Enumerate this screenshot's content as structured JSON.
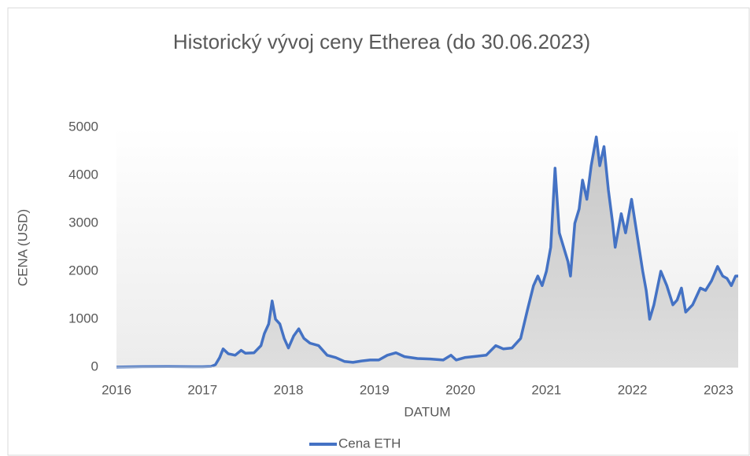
{
  "chart_data": {
    "type": "area-line",
    "title": "Historický vývoj ceny Etherea (do 30.06.2023)",
    "x_label": "DATUM",
    "y_label": "CENA (USD)",
    "series": [
      {
        "name": "Cena ETH",
        "color": "#4472c4",
        "x": [
          2016.0,
          2016.3,
          2016.6,
          2016.9,
          2017.0,
          2017.1,
          2017.15,
          2017.2,
          2017.24,
          2017.3,
          2017.38,
          2017.45,
          2017.5,
          2017.6,
          2017.68,
          2017.72,
          2017.77,
          2017.81,
          2017.85,
          2017.9,
          2017.95,
          2018.0,
          2018.06,
          2018.12,
          2018.18,
          2018.25,
          2018.35,
          2018.45,
          2018.55,
          2018.65,
          2018.75,
          2018.85,
          2018.95,
          2019.05,
          2019.15,
          2019.25,
          2019.35,
          2019.5,
          2019.65,
          2019.8,
          2019.89,
          2019.95,
          2020.05,
          2020.2,
          2020.3,
          2020.41,
          2020.5,
          2020.6,
          2020.7,
          2020.78,
          2020.85,
          2020.9,
          2020.95,
          2021.0,
          2021.05,
          2021.1,
          2021.15,
          2021.2,
          2021.25,
          2021.28,
          2021.33,
          2021.38,
          2021.42,
          2021.47,
          2021.52,
          2021.58,
          2021.62,
          2021.67,
          2021.72,
          2021.77,
          2021.8,
          2021.87,
          2021.92,
          2021.99,
          2022.05,
          2022.12,
          2022.16,
          2022.2,
          2022.25,
          2022.33,
          2022.4,
          2022.47,
          2022.52,
          2022.57,
          2022.62,
          2022.7,
          2022.79,
          2022.85,
          2022.92,
          2022.99,
          2023.05,
          2023.1,
          2023.15,
          2023.2,
          2023.23
        ],
        "values": [
          1,
          10,
          12,
          8,
          9,
          15,
          50,
          200,
          380,
          280,
          250,
          350,
          290,
          300,
          450,
          700,
          900,
          1380,
          1000,
          900,
          600,
          400,
          650,
          800,
          600,
          500,
          450,
          250,
          200,
          120,
          100,
          130,
          150,
          150,
          250,
          300,
          220,
          180,
          170,
          150,
          250,
          150,
          200,
          230,
          250,
          450,
          380,
          400,
          600,
          1200,
          1700,
          1900,
          1700,
          2000,
          2500,
          4150,
          2800,
          2500,
          2200,
          1900,
          3000,
          3300,
          3900,
          3500,
          4200,
          4800,
          4200,
          4600,
          3700,
          3000,
          2500,
          3200,
          2800,
          3500,
          2800,
          2000,
          1600,
          1000,
          1300,
          2000,
          1700,
          1300,
          1400,
          1650,
          1150,
          1300,
          1650,
          1600,
          1800,
          2100,
          1900,
          1850,
          1700,
          1900,
          1900
        ]
      }
    ],
    "xlim": [
      2016,
      2023.23
    ],
    "xticks": [
      2016,
      2017,
      2018,
      2019,
      2020,
      2021,
      2022,
      2023
    ],
    "ylim": [
      0,
      5000
    ],
    "yticks": [
      0,
      1000,
      2000,
      3000,
      4000,
      5000
    ],
    "legend": "bottom"
  }
}
